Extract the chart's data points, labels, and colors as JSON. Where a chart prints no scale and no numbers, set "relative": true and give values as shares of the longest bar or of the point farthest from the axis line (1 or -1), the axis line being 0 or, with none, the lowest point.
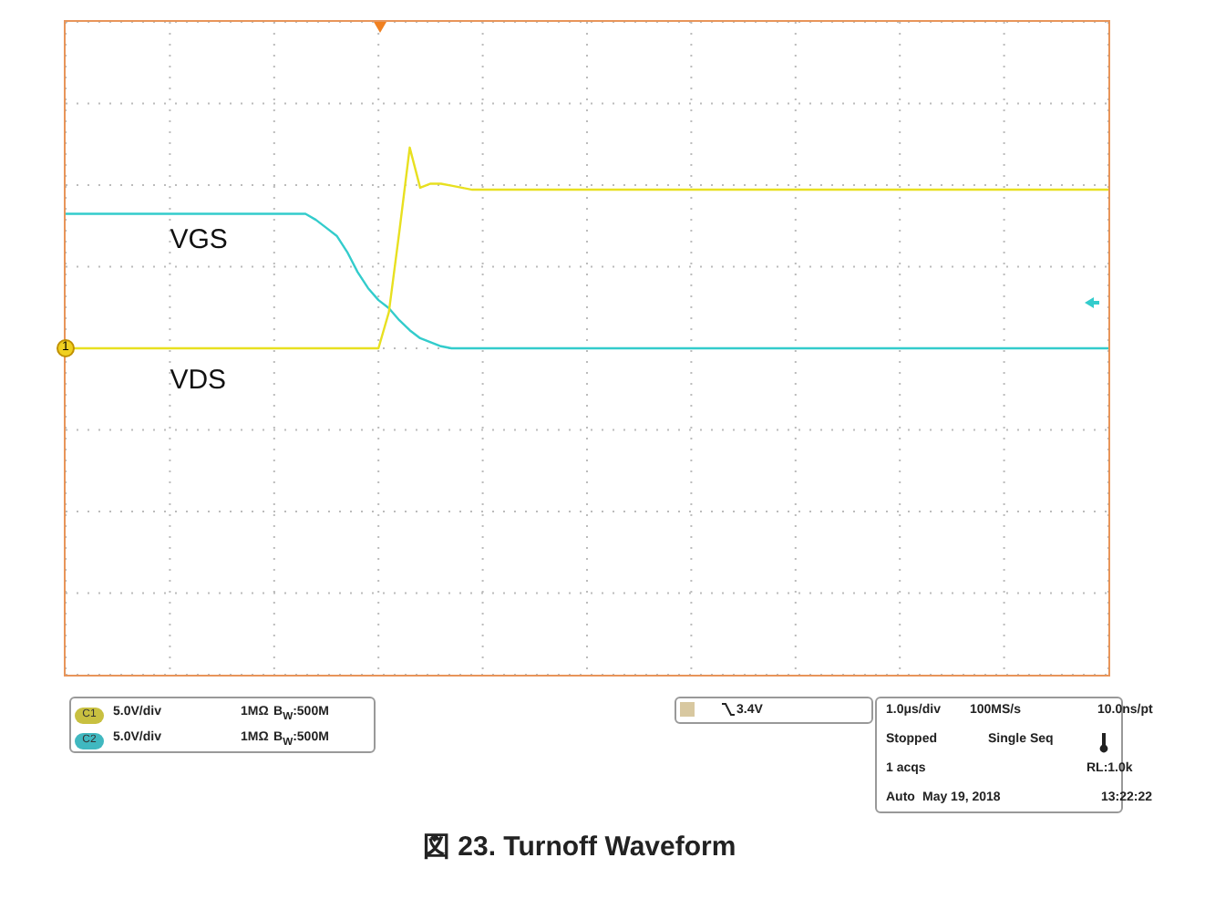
{
  "chart_data": {
    "type": "line",
    "relative": true,
    "grid": true,
    "tick_labels": false,
    "categories": [
      null,
      null,
      null,
      null,
      null,
      null,
      null,
      null,
      null,
      null,
      null,
      null,
      null,
      null,
      null,
      null,
      null,
      null,
      null,
      null,
      null,
      null,
      null,
      null,
      null,
      null,
      null,
      null,
      null,
      null,
      null,
      null,
      null,
      null,
      null,
      null,
      null,
      null,
      null,
      null,
      null,
      null,
      null,
      null,
      null,
      null,
      null,
      null,
      null,
      null,
      null,
      null,
      null,
      null,
      null,
      null,
      null,
      null,
      null,
      null,
      null,
      null,
      null,
      null,
      null,
      null,
      null,
      null,
      null,
      null,
      null,
      null,
      null,
      null,
      null,
      null,
      null,
      null,
      null,
      null,
      null,
      null,
      null,
      null,
      null,
      null,
      null,
      null,
      null,
      null,
      null,
      null,
      null,
      null,
      null,
      null,
      null,
      null,
      null,
      null,
      null
    ],
    "series": [
      {
        "name": "VGS",
        "color": "#33cccc",
        "values": [
          0.67,
          0.67,
          0.67,
          0.67,
          0.67,
          0.67,
          0.67,
          0.67,
          0.67,
          0.67,
          0.67,
          0.67,
          0.67,
          0.67,
          0.67,
          0.67,
          0.67,
          0.67,
          0.67,
          0.67,
          0.67,
          0.67,
          0.67,
          0.67,
          0.64,
          0.6,
          0.56,
          0.48,
          0.38,
          0.3,
          0.24,
          0.2,
          0.14,
          0.09,
          0.05,
          0.03,
          0.01,
          0,
          0,
          0,
          0,
          0,
          0,
          0,
          0,
          0,
          0,
          0,
          0,
          0,
          0,
          0,
          0,
          0,
          0,
          0,
          0,
          0,
          0,
          0,
          0,
          0,
          0,
          0,
          0,
          0,
          0,
          0,
          0,
          0,
          0,
          0,
          0,
          0,
          0,
          0,
          0,
          0,
          0,
          0,
          0,
          0,
          0,
          0,
          0,
          0,
          0,
          0,
          0,
          0,
          0,
          0,
          0,
          0,
          0,
          0,
          0,
          0,
          0,
          0,
          0
        ]
      },
      {
        "name": "VDS",
        "color": "#e8e020",
        "values": [
          0,
          0,
          0,
          0,
          0,
          0,
          0,
          0,
          0,
          0,
          0,
          0,
          0,
          0,
          0,
          0,
          0,
          0,
          0,
          0,
          0,
          0,
          0,
          0,
          0,
          0,
          0,
          0,
          0,
          0,
          0,
          0.18,
          0.58,
          1,
          0.8,
          0.82,
          0.82,
          0.81,
          0.8,
          0.79,
          0.79,
          0.79,
          0.79,
          0.79,
          0.79,
          0.79,
          0.79,
          0.79,
          0.79,
          0.79,
          0.79,
          0.79,
          0.79,
          0.79,
          0.79,
          0.79,
          0.79,
          0.79,
          0.79,
          0.79,
          0.79,
          0.79,
          0.79,
          0.79,
          0.79,
          0.79,
          0.79,
          0.79,
          0.79,
          0.79,
          0.79,
          0.79,
          0.79,
          0.79,
          0.79,
          0.79,
          0.79,
          0.79,
          0.79,
          0.79,
          0.79,
          0.79,
          0.79,
          0.79,
          0.79,
          0.79,
          0.79,
          0.79,
          0.79,
          0.79,
          0.79,
          0.79,
          0.79,
          0.79,
          0.79,
          0.79,
          0.79,
          0.79,
          0.79,
          0.79,
          0.79
        ]
      }
    ],
    "annotations": [
      "C1",
      "5.0V/div",
      "1MΩ",
      "B$_{W}$:500M",
      "C2",
      "5.0V/div",
      "1MΩ",
      "B$_{W}$:500M",
      "3.4V",
      "1.0μs/div",
      "100MS/s",
      "10.0ns/pt",
      "Stopped",
      "Single Seq",
      "1 acqs",
      "RL:1.0k",
      "Auto",
      "May 19, 2018",
      "13:22:22",
      "図 23. Turnoff Waveform",
      "1"
    ]
  }
}
